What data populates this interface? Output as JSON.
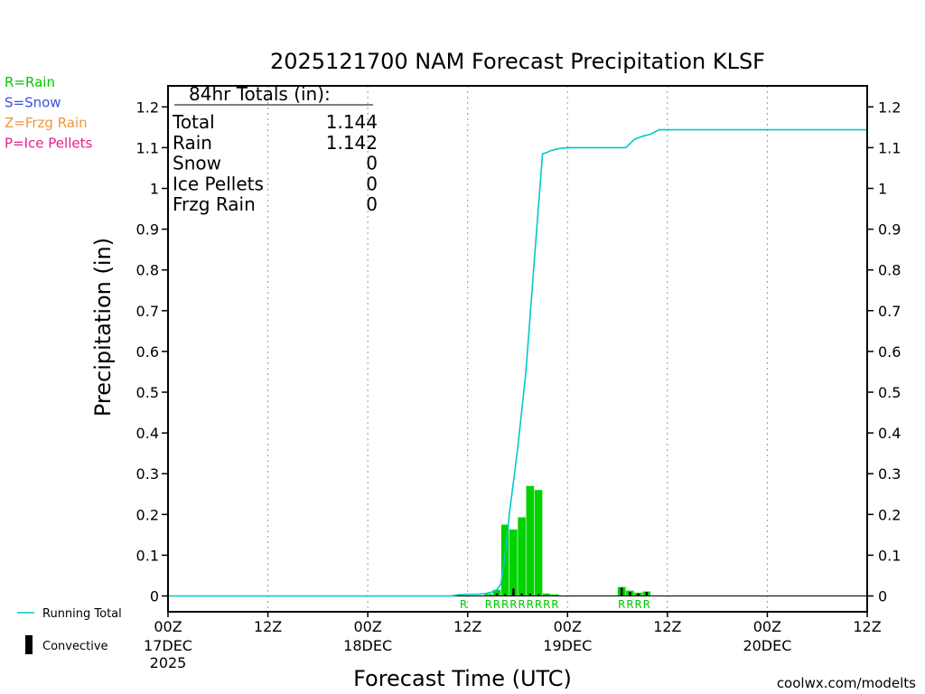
{
  "chart_data": {
    "type": "bar",
    "title": "2025121700 NAM Forecast Precipitation KLSF",
    "xlabel": "Forecast Time (UTC)",
    "ylabel": "Precipitation (in)",
    "ylim": [
      -0.04,
      1.25
    ],
    "xlim": [
      0,
      84
    ],
    "y_ticks": [
      0,
      0.1,
      0.2,
      0.3,
      0.4,
      0.5,
      0.6,
      0.7,
      0.8,
      0.9,
      1,
      1.1,
      1.2
    ],
    "x_ticks": [
      {
        "hour": 0,
        "label": "00Z",
        "date": "17DEC",
        "year": "2025"
      },
      {
        "hour": 12,
        "label": "12Z",
        "date": "",
        "year": ""
      },
      {
        "hour": 24,
        "label": "00Z",
        "date": "18DEC",
        "year": ""
      },
      {
        "hour": 36,
        "label": "12Z",
        "date": "",
        "year": ""
      },
      {
        "hour": 48,
        "label": "00Z",
        "date": "19DEC",
        "year": ""
      },
      {
        "hour": 60,
        "label": "12Z",
        "date": "",
        "year": ""
      },
      {
        "hour": 72,
        "label": "00Z",
        "date": "20DEC",
        "year": ""
      },
      {
        "hour": 84,
        "label": "12Z",
        "date": "",
        "year": ""
      }
    ],
    "legend_left": [
      {
        "text": "R=Rain",
        "color": "#00c800"
      },
      {
        "text": "S=Snow",
        "color": "#3c50dc"
      },
      {
        "text": "Z=Frzg Rain",
        "color": "#f0963c"
      },
      {
        "text": "P=Ice Pellets",
        "color": "#e61e8c"
      }
    ],
    "legend_bottom": [
      {
        "text": "Running Total",
        "color": "#00c8c8",
        "kind": "line"
      },
      {
        "text": "Convective",
        "color": "#000000",
        "kind": "bar"
      }
    ],
    "totals_box": {
      "header": "84hr Totals (in):",
      "rows": [
        {
          "label": "Total",
          "value": "1.144"
        },
        {
          "label": "Rain",
          "value": "1.142"
        },
        {
          "label": "Snow",
          "value": "0"
        },
        {
          "label": "Ice Pellets",
          "value": "0"
        },
        {
          "label": "Frzg Rain",
          "value": "0"
        }
      ]
    },
    "series": [
      {
        "name": "Rain",
        "color": "#00d200",
        "hour": [
          36,
          39,
          40,
          41,
          42,
          43,
          44,
          45,
          46,
          47,
          55,
          56,
          57,
          58
        ],
        "values": [
          0.001,
          0.005,
          0.015,
          0.175,
          0.163,
          0.193,
          0.27,
          0.26,
          0.006,
          0.004,
          0.022,
          0.013,
          0.008,
          0.011
        ]
      },
      {
        "name": "Convective",
        "color": "#000000",
        "hour": [
          40,
          41,
          42,
          43,
          44,
          45,
          46,
          55,
          56,
          57,
          58
        ],
        "values": [
          0.006,
          0.004,
          0.018,
          0.006,
          0.006,
          0.004,
          0.002,
          0.02,
          0.01,
          0.006,
          0.01
        ]
      },
      {
        "name": "Running Total",
        "color": "#00c8c8",
        "hour": [
          0,
          34,
          35,
          36,
          37,
          38,
          39,
          39.5,
          40,
          40.5,
          41,
          42,
          43,
          44,
          45,
          45.5,
          46,
          47,
          48,
          55,
          55.5,
          56,
          57,
          58,
          59,
          60,
          84
        ],
        "values": [
          0,
          0,
          0.003,
          0.004,
          0.004,
          0.005,
          0.01,
          0.015,
          0.03,
          0.1,
          0.2,
          0.36,
          0.55,
          0.82,
          1.085,
          1.088,
          1.093,
          1.098,
          1.1,
          1.1,
          1.11,
          1.12,
          1.128,
          1.133,
          1.144,
          1.144,
          1.144
        ]
      }
    ],
    "ptype_markers": [
      {
        "hour": 36,
        "letter": "R"
      },
      {
        "hour": 39,
        "letter": "R"
      },
      {
        "hour": 40,
        "letter": "R"
      },
      {
        "hour": 41,
        "letter": "R"
      },
      {
        "hour": 42,
        "letter": "R"
      },
      {
        "hour": 43,
        "letter": "R"
      },
      {
        "hour": 44,
        "letter": "R"
      },
      {
        "hour": 45,
        "letter": "R"
      },
      {
        "hour": 46,
        "letter": "R"
      },
      {
        "hour": 47,
        "letter": "R"
      },
      {
        "hour": 55,
        "letter": "R"
      },
      {
        "hour": 56,
        "letter": "R"
      },
      {
        "hour": 57,
        "letter": "R"
      },
      {
        "hour": 58,
        "letter": "R"
      }
    ],
    "ptype_marker_color": "#00c800",
    "grid_x": true,
    "footer": "coolwx.com/modelts",
    "footer_color": "#c81e3c"
  }
}
